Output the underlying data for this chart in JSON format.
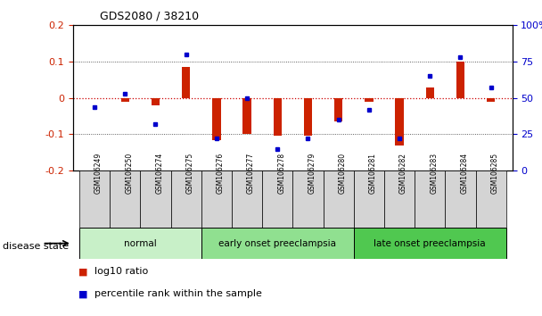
{
  "title": "GDS2080 / 38210",
  "samples": [
    "GSM106249",
    "GSM106250",
    "GSM106274",
    "GSM106275",
    "GSM106276",
    "GSM106277",
    "GSM106278",
    "GSM106279",
    "GSM106280",
    "GSM106281",
    "GSM106282",
    "GSM106283",
    "GSM106284",
    "GSM106285"
  ],
  "log10_ratio": [
    0.0,
    -0.01,
    -0.02,
    0.085,
    -0.115,
    -0.1,
    -0.105,
    -0.105,
    -0.065,
    -0.01,
    -0.13,
    0.03,
    0.1,
    -0.01
  ],
  "percentile_rank": [
    44,
    53,
    32,
    80,
    22,
    50,
    15,
    22,
    35,
    42,
    22,
    65,
    78,
    57
  ],
  "groups": [
    {
      "label": "normal",
      "start": 0,
      "end": 3,
      "color": "#c8f0c8"
    },
    {
      "label": "early onset preeclampsia",
      "start": 4,
      "end": 8,
      "color": "#90e090"
    },
    {
      "label": "late onset preeclampsia",
      "start": 9,
      "end": 13,
      "color": "#50c850"
    }
  ],
  "ylim_left": [
    -0.2,
    0.2
  ],
  "ylim_right": [
    0,
    100
  ],
  "yticks_left": [
    -0.2,
    -0.1,
    0.0,
    0.1,
    0.2
  ],
  "yticks_right": [
    0,
    25,
    50,
    75,
    100
  ],
  "bar_color": "#cc2200",
  "dot_color": "#0000cc",
  "zero_line_color": "#cc0000",
  "grid_color": "#333333",
  "background_color": "#ffffff",
  "legend_log10": "log10 ratio",
  "legend_pct": "percentile rank within the sample",
  "disease_state_label": "disease state"
}
